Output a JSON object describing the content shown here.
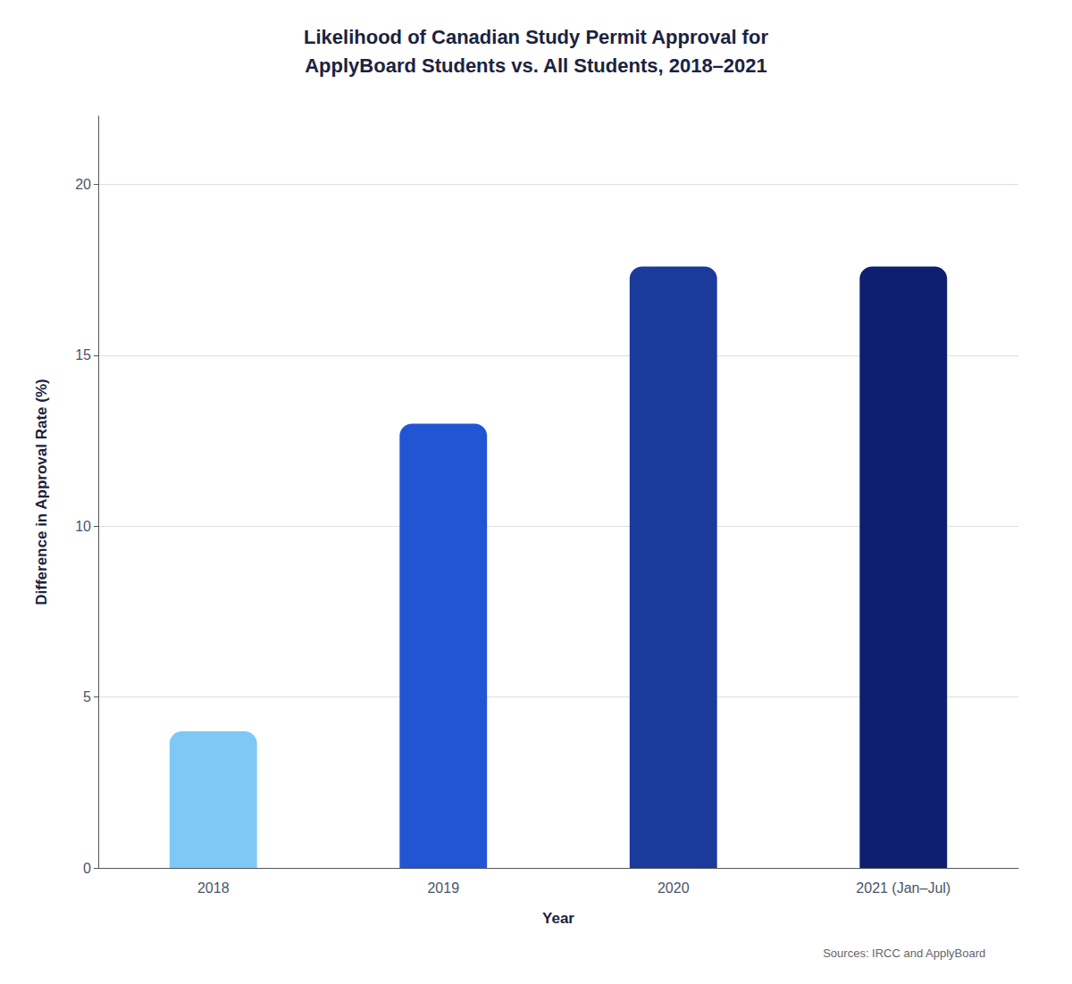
{
  "chart_data": {
    "type": "bar",
    "title": "Likelihood of Canadian Study Permit Approval for\nApplyBoard Students vs. All Students, 2018–2021",
    "xlabel": "Year",
    "ylabel": "Difference in Approval Rate (%)",
    "categories": [
      "2018",
      "2019",
      "2020",
      "2021 (Jan–Jul)"
    ],
    "values": [
      4.0,
      13.0,
      17.6,
      17.6
    ],
    "colors": [
      "#7EC8F5",
      "#2255D4",
      "#1A3A9C",
      "#0D1F6E"
    ],
    "ylim": [
      0,
      22
    ],
    "yticks": [
      0,
      5,
      10,
      15,
      20
    ],
    "grid": true,
    "annotation": "Sources: IRCC and ApplyBoard"
  }
}
